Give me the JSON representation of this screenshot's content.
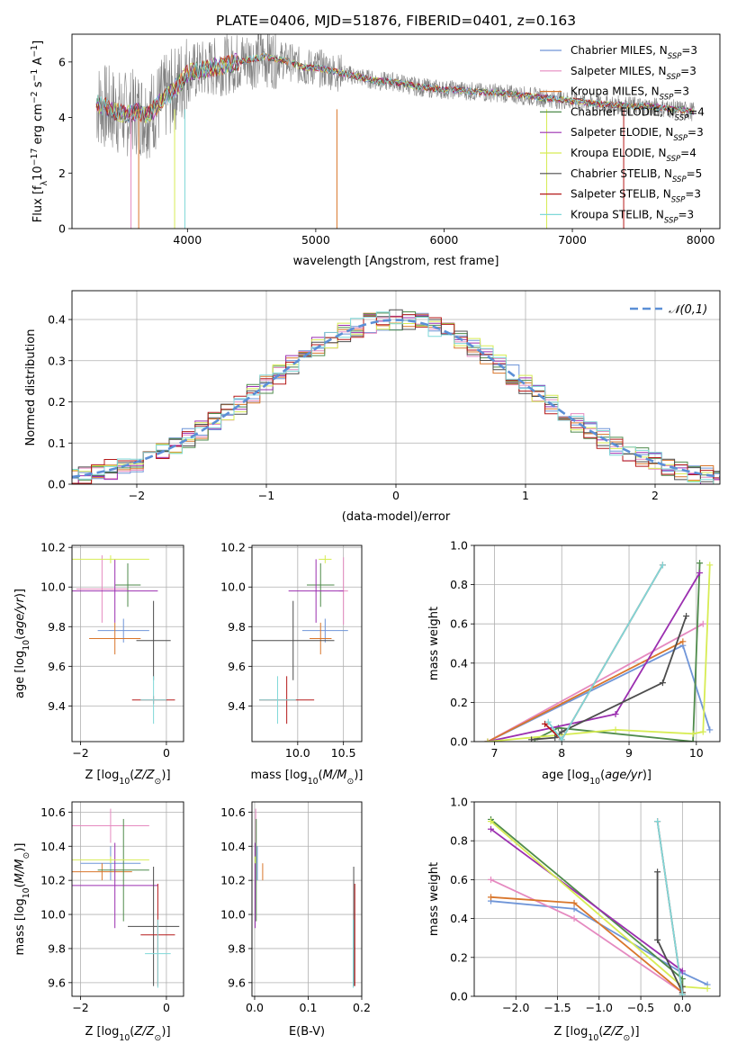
{
  "title": "PLATE=0406, MJD=51876, FIBERID=0401, z=0.163",
  "colors": [
    "#6f95d8",
    "#e58ac0",
    "#d9762b",
    "#4f8b4b",
    "#9b2fb0",
    "#d7ec54",
    "#4d4d4d",
    "#b51a1a",
    "#7fd8d8"
  ],
  "chart_data": [
    {
      "id": "spectrum",
      "type": "line",
      "title": "PLATE=0406, MJD=51876, FIBERID=0401, z=0.163",
      "xlabel": "wavelength [Angstrom, rest frame]",
      "ylabel": "Flux [f_λ 10^-17 erg cm^-2 s^-1 A^-1]",
      "xlim": [
        3100,
        8150
      ],
      "ylim": [
        0,
        7
      ],
      "xticks": [
        4000,
        5000,
        6000,
        7000,
        8000
      ],
      "yticks": [
        0,
        2,
        4,
        6
      ],
      "data_color": "#808080",
      "data": {
        "x": [
          3290,
          3400,
          3500,
          3600,
          3700,
          3800,
          3900,
          4000,
          4100,
          4200,
          4300,
          4400,
          4500,
          4600,
          4700,
          4800,
          4900,
          5000,
          5100,
          5200,
          5300,
          5400,
          5500,
          5600,
          5700,
          5800,
          5900,
          6000,
          6100,
          6200,
          6300,
          6400,
          6500,
          6600,
          6700,
          6800,
          6900,
          7000,
          7100,
          7200,
          7300,
          7400,
          7500,
          7600,
          7700,
          7800,
          7900,
          7950
        ],
        "y": [
          4.5,
          4.3,
          4.1,
          4.2,
          4.1,
          4.6,
          5.0,
          5.6,
          5.7,
          5.8,
          5.9,
          6.0,
          6.1,
          6.2,
          6.1,
          6.0,
          5.8,
          5.8,
          5.7,
          5.6,
          5.5,
          5.4,
          5.3,
          5.3,
          5.2,
          5.1,
          5.05,
          5.0,
          5.0,
          4.95,
          4.9,
          4.9,
          4.85,
          4.8,
          4.75,
          4.7,
          4.65,
          4.6,
          4.55,
          4.5,
          4.45,
          4.45,
          4.4,
          4.4,
          4.35,
          4.3,
          4.25,
          4.2
        ]
      },
      "legend_location": "upper right",
      "series": [
        {
          "label": "Chabrier MILES, N_SSP=3"
        },
        {
          "label": "Salpeter MILES, N_SSP=3"
        },
        {
          "label": "Kroupa MILES, N_SSP=3"
        },
        {
          "label": "Chabrier ELODIE, N_SSP=4"
        },
        {
          "label": "Salpeter ELODIE, N_SSP=3"
        },
        {
          "label": "Kroupa ELODIE, N_SSP=4"
        },
        {
          "label": "Chabrier STELIB, N_SSP=5"
        },
        {
          "label": "Salpeter STELIB, N_SSP=3"
        },
        {
          "label": "Kroupa STELIB, N_SSP=3"
        }
      ]
    },
    {
      "id": "residuals",
      "type": "line",
      "xlabel": "(data-model)/error",
      "ylabel": "Normed distribution",
      "xlim": [
        -2.5,
        2.5
      ],
      "ylim": [
        0,
        0.47
      ],
      "xticks": [
        -2,
        -1,
        0,
        1,
        2
      ],
      "yticks": [
        0.0,
        0.1,
        0.2,
        0.3,
        0.4
      ],
      "ref_label": "𝒩(0,1)",
      "ref_mu": 0,
      "ref_sigma": 1,
      "bin_width": 0.1,
      "legend_location": "upper right"
    },
    {
      "id": "age_vs_Z",
      "type": "scatter",
      "xlabel": "Z [log10(Z/Z⊙)]",
      "ylabel": "age [log10(age/yr)]",
      "xlim": [
        -2.2,
        0.4
      ],
      "ylim": [
        9.22,
        10.21
      ],
      "xticks": [
        -2,
        0
      ],
      "yticks": [
        9.4,
        9.6,
        9.8,
        10.0,
        10.2
      ],
      "points": [
        {
          "x": -1.0,
          "y": 9.78,
          "xerr": 0.6,
          "yerr": 0.06
        },
        {
          "x": -1.5,
          "y": 9.99,
          "xerr": 0.6,
          "yerr": 0.17
        },
        {
          "x": -1.2,
          "y": 9.74,
          "xerr": 0.6,
          "yerr": 0.08
        },
        {
          "x": -0.9,
          "y": 10.01,
          "xerr": 0.3,
          "yerr": 0.11
        },
        {
          "x": -1.2,
          "y": 9.98,
          "xerr": 1.0,
          "yerr": 0.16
        },
        {
          "x": -1.3,
          "y": 10.14,
          "xerr": 0.9,
          "yerr": 0.02
        },
        {
          "x": -0.3,
          "y": 9.73,
          "xerr": 0.4,
          "yerr": 0.2
        },
        {
          "x": -0.3,
          "y": 9.43,
          "xerr": 0.5,
          "yerr": 0.02
        },
        {
          "x": -0.3,
          "y": 9.43,
          "xerr": 0.3,
          "yerr": 0.12
        }
      ]
    },
    {
      "id": "age_vs_mass",
      "type": "scatter",
      "xlabel": "mass [log10(M/M⊙)]",
      "ylabel": "",
      "xlim": [
        9.5,
        10.7
      ],
      "ylim": [
        9.22,
        10.21
      ],
      "xticks": [
        10.0,
        10.5
      ],
      "yticks": [
        9.4,
        9.6,
        9.8,
        10.0,
        10.2
      ],
      "points": [
        {
          "x": 10.3,
          "y": 9.78,
          "xerr": 0.25,
          "yerr": 0.06
        },
        {
          "x": 10.5,
          "y": 9.98,
          "xerr": 0.05,
          "yerr": 0.17
        },
        {
          "x": 10.25,
          "y": 9.74,
          "xerr": 0.12,
          "yerr": 0.08
        },
        {
          "x": 10.25,
          "y": 10.01,
          "xerr": 0.15,
          "yerr": 0.11
        },
        {
          "x": 10.2,
          "y": 9.98,
          "xerr": 0.3,
          "yerr": 0.16
        },
        {
          "x": 10.3,
          "y": 10.14,
          "xerr": 0.07,
          "yerr": 0.02
        },
        {
          "x": 9.95,
          "y": 9.73,
          "xerr": 0.45,
          "yerr": 0.2
        },
        {
          "x": 9.88,
          "y": 9.43,
          "xerr": 0.3,
          "yerr": 0.12
        },
        {
          "x": 9.78,
          "y": 9.43,
          "xerr": 0.2,
          "yerr": 0.12
        }
      ]
    },
    {
      "id": "weight_vs_age",
      "type": "line",
      "xlabel": "age [log10(age/yr)]",
      "ylabel": "mass weight",
      "xlim": [
        6.7,
        10.35
      ],
      "ylim": [
        0,
        1
      ],
      "xticks": [
        7,
        8,
        9,
        10
      ],
      "yticks": [
        0.0,
        0.2,
        0.4,
        0.6,
        0.8,
        1.0
      ],
      "series": [
        {
          "x": [
            6.9,
            9.8,
            10.2
          ],
          "y": [
            0.0,
            0.49,
            0.06
          ]
        },
        {
          "x": [
            6.9,
            10.1
          ],
          "y": [
            0.0,
            0.6
          ]
        },
        {
          "x": [
            6.9,
            9.8
          ],
          "y": [
            0.0,
            0.51
          ]
        },
        {
          "x": [
            7.6,
            7.95,
            9.95,
            10.05
          ],
          "y": [
            0.01,
            0.07,
            0.0,
            0.91
          ]
        },
        {
          "x": [
            6.9,
            8.8,
            10.05
          ],
          "y": [
            0.0,
            0.14,
            0.86
          ]
        },
        {
          "x": [
            6.9,
            8.8,
            9.95,
            10.1,
            10.2
          ],
          "y": [
            0.0,
            0.06,
            0.04,
            0.05,
            0.9
          ]
        },
        {
          "x": [
            7.55,
            7.9,
            8.0,
            9.5,
            9.85
          ],
          "y": [
            0.01,
            0.02,
            0.05,
            0.3,
            0.64
          ]
        },
        {
          "x": [
            7.75,
            8.0,
            9.5
          ],
          "y": [
            0.09,
            0.01,
            0.9
          ]
        },
        {
          "x": [
            7.8,
            8.0,
            9.5
          ],
          "y": [
            0.1,
            0.01,
            0.9
          ]
        }
      ]
    },
    {
      "id": "mass_vs_Z",
      "type": "scatter",
      "xlabel": "Z [log10(Z/Z⊙)]",
      "ylabel": "mass [log10(M/M⊙)]",
      "xlim": [
        -2.2,
        0.4
      ],
      "ylim": [
        9.52,
        10.66
      ],
      "xticks": [
        -2,
        0
      ],
      "yticks": [
        9.6,
        9.8,
        10.0,
        10.2,
        10.4,
        10.6
      ],
      "points": [
        {
          "x": -1.3,
          "y": 10.3,
          "xerr": 0.7,
          "yerr": 0.1
        },
        {
          "x": -1.3,
          "y": 10.52,
          "xerr": 0.9,
          "yerr": 0.1
        },
        {
          "x": -1.5,
          "y": 10.25,
          "xerr": 0.7,
          "yerr": 0.05
        },
        {
          "x": -1.0,
          "y": 10.26,
          "xerr": 0.6,
          "yerr": 0.3
        },
        {
          "x": -1.2,
          "y": 10.17,
          "xerr": 1.0,
          "yerr": 0.25
        },
        {
          "x": -1.3,
          "y": 10.32,
          "xerr": 0.9,
          "yerr": 0.02
        },
        {
          "x": -0.3,
          "y": 9.93,
          "xerr": 0.6,
          "yerr": 0.35
        },
        {
          "x": -0.2,
          "y": 9.88,
          "xerr": 0.4,
          "yerr": 0.3
        },
        {
          "x": -0.2,
          "y": 9.77,
          "xerr": 0.3,
          "yerr": 0.2
        }
      ]
    },
    {
      "id": "mass_vs_ebv",
      "type": "scatter",
      "xlabel": "E(B-V)",
      "ylabel": "",
      "xlim": [
        -0.005,
        0.2
      ],
      "ylim": [
        9.52,
        10.66
      ],
      "xticks": [
        0.0,
        0.1,
        0.2
      ],
      "yticks": [
        9.6,
        9.8,
        10.0,
        10.2,
        10.4,
        10.6
      ],
      "points": [
        {
          "x": 0.005,
          "y": 10.3,
          "xerr": 0,
          "yerr": 0.1
        },
        {
          "x": 0.002,
          "y": 10.52,
          "xerr": 0,
          "yerr": 0.1
        },
        {
          "x": 0.015,
          "y": 10.25,
          "xerr": 0,
          "yerr": 0.05
        },
        {
          "x": 0.003,
          "y": 10.26,
          "xerr": 0,
          "yerr": 0.3
        },
        {
          "x": 0.001,
          "y": 10.17,
          "xerr": 0,
          "yerr": 0.25
        },
        {
          "x": 0.001,
          "y": 10.32,
          "xerr": 0,
          "yerr": 0.02
        },
        {
          "x": 0.185,
          "y": 9.93,
          "xerr": 0,
          "yerr": 0.35
        },
        {
          "x": 0.187,
          "y": 9.88,
          "xerr": 0,
          "yerr": 0.3
        },
        {
          "x": 0.184,
          "y": 9.77,
          "xerr": 0,
          "yerr": 0.2
        }
      ]
    },
    {
      "id": "weight_vs_Z",
      "type": "line",
      "xlabel": "Z [log10(Z/Z⊙)]",
      "ylabel": "mass weight",
      "xlim": [
        -2.5,
        0.45
      ],
      "ylim": [
        0,
        1
      ],
      "xticks": [
        -2.0,
        -1.5,
        -1.0,
        -0.5,
        0.0
      ],
      "yticks": [
        0.0,
        0.2,
        0.4,
        0.6,
        0.8,
        1.0
      ],
      "series": [
        {
          "x": [
            -2.3,
            -1.3,
            0.0,
            0.3
          ],
          "y": [
            0.49,
            0.45,
            0.12,
            0.06
          ]
        },
        {
          "x": [
            -2.3,
            -1.3,
            0.0
          ],
          "y": [
            0.6,
            0.4,
            0.02
          ]
        },
        {
          "x": [
            -2.3,
            -1.3,
            0.0
          ],
          "y": [
            0.51,
            0.48,
            0.02
          ]
        },
        {
          "x": [
            -2.3,
            0.0,
            0.0
          ],
          "y": [
            0.91,
            0.09,
            0.01
          ]
        },
        {
          "x": [
            -2.3,
            0.0
          ],
          "y": [
            0.86,
            0.13
          ]
        },
        {
          "x": [
            -2.3,
            0.0,
            0.3
          ],
          "y": [
            0.9,
            0.05,
            0.04
          ]
        },
        {
          "x": [
            -0.3,
            -0.3,
            0.0,
            0.0
          ],
          "y": [
            0.64,
            0.29,
            0.02,
            0.05
          ]
        },
        {
          "x": [
            -0.3,
            0.0
          ],
          "y": [
            0.9,
            0.01
          ]
        },
        {
          "x": [
            -0.3,
            0.0
          ],
          "y": [
            0.9,
            0.01
          ]
        }
      ]
    }
  ]
}
